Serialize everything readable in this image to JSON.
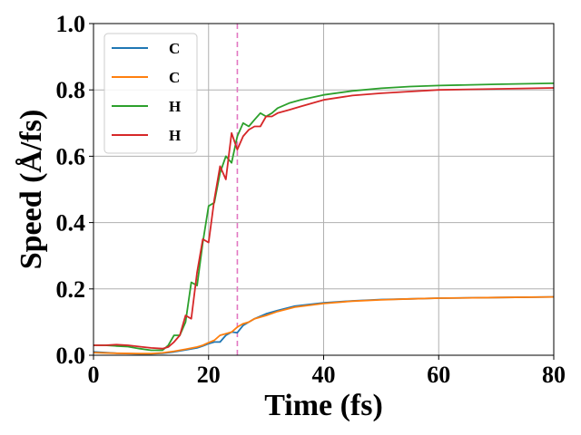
{
  "chart_data": {
    "type": "line",
    "title": "",
    "xlabel": "Time (fs)",
    "ylabel": "Speed (Å/fs)",
    "xlim": [
      0,
      80
    ],
    "ylim": [
      0,
      1.0
    ],
    "xticks": [
      "0",
      "20",
      "40",
      "60",
      "80"
    ],
    "yticks": [
      "0.0",
      "0.2",
      "0.4",
      "0.6",
      "0.8",
      "1.0"
    ],
    "grid": true,
    "legend_position": "top-left",
    "vline": {
      "x": 25,
      "color": "#e377c2",
      "style": "dashed"
    },
    "series": [
      {
        "name": "C",
        "color": "#1f77b4",
        "x": [
          0,
          4,
          8,
          10,
          12,
          14,
          16,
          18,
          19,
          20,
          21,
          22,
          23,
          24,
          25,
          26,
          27,
          28,
          30,
          32,
          35,
          40,
          45,
          50,
          55,
          60,
          70,
          80
        ],
        "y": [
          0.01,
          0.006,
          0.004,
          0.004,
          0.006,
          0.01,
          0.016,
          0.022,
          0.028,
          0.035,
          0.04,
          0.04,
          0.06,
          0.07,
          0.068,
          0.09,
          0.1,
          0.11,
          0.125,
          0.135,
          0.148,
          0.158,
          0.164,
          0.168,
          0.17,
          0.172,
          0.174,
          0.176
        ]
      },
      {
        "name": "C",
        "color": "#ff7f0e",
        "x": [
          0,
          4,
          8,
          10,
          12,
          14,
          16,
          18,
          19,
          20,
          21,
          22,
          23,
          24,
          25,
          26,
          27,
          28,
          30,
          32,
          35,
          40,
          45,
          50,
          55,
          60,
          70,
          80
        ],
        "y": [
          0.008,
          0.006,
          0.005,
          0.005,
          0.007,
          0.012,
          0.018,
          0.025,
          0.03,
          0.038,
          0.045,
          0.06,
          0.065,
          0.07,
          0.085,
          0.095,
          0.1,
          0.11,
          0.12,
          0.132,
          0.145,
          0.156,
          0.163,
          0.167,
          0.17,
          0.172,
          0.174,
          0.176
        ]
      },
      {
        "name": "H",
        "color": "#2ca02c",
        "x": [
          0,
          2,
          4,
          6,
          8,
          10,
          12,
          13,
          14,
          15,
          16,
          17,
          18,
          19,
          20,
          21,
          22,
          23,
          24,
          25,
          26,
          27,
          28,
          29,
          30,
          31,
          32,
          34,
          36,
          40,
          45,
          50,
          55,
          60,
          70,
          80
        ],
        "y": [
          0.03,
          0.03,
          0.028,
          0.026,
          0.02,
          0.015,
          0.015,
          0.03,
          0.06,
          0.06,
          0.1,
          0.22,
          0.21,
          0.34,
          0.45,
          0.46,
          0.55,
          0.6,
          0.58,
          0.66,
          0.7,
          0.69,
          0.71,
          0.73,
          0.72,
          0.73,
          0.745,
          0.76,
          0.77,
          0.785,
          0.797,
          0.805,
          0.81,
          0.813,
          0.817,
          0.82
        ]
      },
      {
        "name": "H",
        "color": "#d62728",
        "x": [
          0,
          2,
          4,
          6,
          8,
          10,
          12,
          13,
          14,
          15,
          16,
          17,
          18,
          19,
          20,
          21,
          22,
          23,
          24,
          25,
          26,
          27,
          28,
          29,
          30,
          31,
          32,
          34,
          36,
          40,
          45,
          50,
          55,
          60,
          70,
          80
        ],
        "y": [
          0.03,
          0.03,
          0.032,
          0.03,
          0.026,
          0.022,
          0.02,
          0.025,
          0.04,
          0.06,
          0.12,
          0.11,
          0.25,
          0.35,
          0.34,
          0.47,
          0.57,
          0.53,
          0.67,
          0.62,
          0.66,
          0.68,
          0.69,
          0.69,
          0.72,
          0.72,
          0.73,
          0.74,
          0.75,
          0.77,
          0.783,
          0.79,
          0.795,
          0.8,
          0.803,
          0.806
        ]
      }
    ]
  }
}
